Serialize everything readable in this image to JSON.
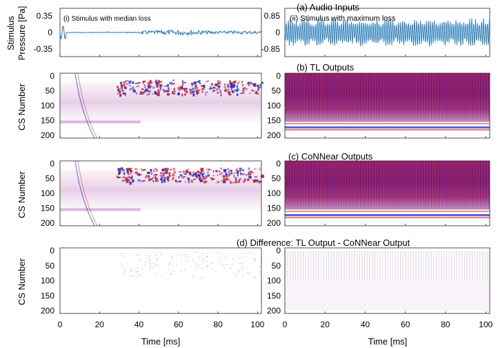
{
  "figure": {
    "rows": [
      {
        "id": "a",
        "title": "(a) Audio Inputs",
        "ylabel": [
          "Stimulus",
          "Pressure [Pa]"
        ],
        "yticks": [
          {
            "left": "0.35",
            "right": "0.85"
          },
          {
            "left": "0",
            "right": "0"
          },
          {
            "left": "-0.35",
            "right": "-0.85"
          }
        ]
      },
      {
        "id": "b",
        "title": "(b) TL Outputs",
        "ylabel": [
          "CS Number"
        ],
        "yticks": [
          "0",
          "50",
          "100",
          "150",
          "200"
        ]
      },
      {
        "id": "c",
        "title": "(c) CoNNear Outputs",
        "ylabel": [
          "CS Number"
        ],
        "yticks": [
          "0",
          "50",
          "100",
          "150",
          "200"
        ]
      },
      {
        "id": "d",
        "title": "(d) Difference: TL Output - CoNNear Output",
        "ylabel": [
          "CS Number"
        ],
        "yticks": [
          "0",
          "50",
          "100",
          "150",
          "200"
        ]
      }
    ],
    "xlabel": "Time [ms]",
    "xticks": [
      "0",
      "20",
      "40",
      "60",
      "80",
      "100"
    ],
    "panel_labels": {
      "left": "(i) Stimulus with median loss",
      "right": "(ii) Stimulus with maximum loss"
    }
  },
  "colors": {
    "waveform": "#1f77b4",
    "positive": "#d0202a",
    "negative": "#2030c8",
    "neutral": "#ffffff"
  },
  "chart_data": [
    {
      "type": "line",
      "panel": "a-left",
      "series": [
        {
          "values": "audio waveform"
        }
      ],
      "ylim": [
        -0.35,
        0.35
      ],
      "xlim": [
        0,
        102
      ],
      "xlabel": "Time [ms]",
      "ylabel": "Stimulus Pressure [Pa]",
      "annotations": [
        "(i) Stimulus with median loss"
      ]
    },
    {
      "type": "line",
      "panel": "a-right",
      "series": [
        {
          "values": "audio waveform"
        }
      ],
      "ylim": [
        -0.85,
        0.85
      ],
      "xlim": [
        0,
        102
      ],
      "xlabel": "Time [ms]",
      "annotations": [
        "(ii) Stimulus with maximum loss"
      ]
    },
    {
      "type": "heatmap",
      "panel": "b-left",
      "title": "(b) TL Outputs",
      "xlim": [
        0,
        102
      ],
      "ylim": [
        200,
        0
      ],
      "ylabel": "CS Number",
      "colormap": "red-white-blue"
    },
    {
      "type": "heatmap",
      "panel": "b-right",
      "xlim": [
        0,
        102
      ],
      "ylim": [
        200,
        0
      ],
      "colormap": "red-white-blue"
    },
    {
      "type": "heatmap",
      "panel": "c-left",
      "title": "(c) CoNNear Outputs",
      "xlim": [
        0,
        102
      ],
      "ylim": [
        200,
        0
      ],
      "ylabel": "CS Number",
      "colormap": "red-white-blue"
    },
    {
      "type": "heatmap",
      "panel": "c-right",
      "xlim": [
        0,
        102
      ],
      "ylim": [
        200,
        0
      ],
      "colormap": "red-white-blue"
    },
    {
      "type": "heatmap",
      "panel": "d-left",
      "title": "(d) Difference: TL Output - CoNNear Output",
      "xlim": [
        0,
        102
      ],
      "ylim": [
        200,
        0
      ],
      "ylabel": "CS Number",
      "xlabel": "Time [ms]",
      "colormap": "red-white-blue"
    },
    {
      "type": "heatmap",
      "panel": "d-right",
      "xlim": [
        0,
        102
      ],
      "ylim": [
        200,
        0
      ],
      "xlabel": "Time [ms]",
      "colormap": "red-white-blue"
    }
  ]
}
